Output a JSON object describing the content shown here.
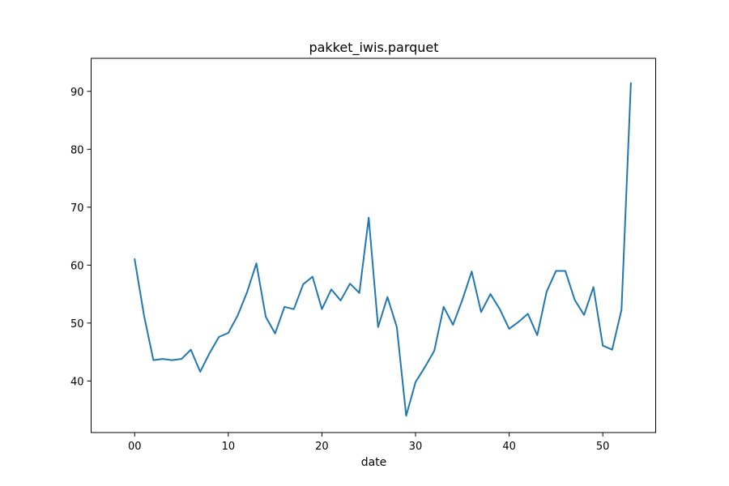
{
  "chart_data": {
    "type": "line",
    "title": "pakket_iwis.parquet",
    "xlabel": "date",
    "ylabel": "",
    "xlim": [
      -4.65,
      55.65
    ],
    "ylim": [
      31.1,
      95.7
    ],
    "xticks": [
      0,
      10,
      20,
      30,
      40,
      50
    ],
    "xtick_labels": [
      "00",
      "10",
      "20",
      "30",
      "40",
      "50"
    ],
    "yticks": [
      40,
      50,
      60,
      70,
      80,
      90
    ],
    "ytick_labels": [
      "40",
      "50",
      "60",
      "70",
      "80",
      "90"
    ],
    "grid": false,
    "legend": "none",
    "series": [
      {
        "color": "#1f77b4",
        "x": [
          0,
          1,
          2,
          3,
          4,
          5,
          6,
          7,
          8,
          9,
          10,
          11,
          12,
          13,
          14,
          15,
          16,
          17,
          18,
          19,
          20,
          21,
          22,
          23,
          24,
          25,
          26,
          27,
          28,
          29,
          30,
          31,
          32,
          33,
          34,
          35,
          36,
          37,
          38,
          39,
          40,
          41,
          42,
          43,
          44,
          45,
          46,
          47,
          48,
          49,
          50,
          51,
          52,
          53
        ],
        "y": [
          61.0,
          51.3,
          43.6,
          43.8,
          43.6,
          43.8,
          45.4,
          41.6,
          44.8,
          47.6,
          48.3,
          51.3,
          55.3,
          60.3,
          51.1,
          48.2,
          52.8,
          52.4,
          56.7,
          58.0,
          52.4,
          55.8,
          53.9,
          56.8,
          55.2,
          68.2,
          49.3,
          54.5,
          49.3,
          34.0,
          39.8,
          42.4,
          45.2,
          52.8,
          49.7,
          54.0,
          58.9,
          51.9,
          55.0,
          52.4,
          49.0,
          50.2,
          51.6,
          47.9,
          55.4,
          59.0,
          59.0,
          54.0,
          51.4,
          56.2,
          46.1,
          45.4,
          52.3,
          91.4
        ]
      }
    ]
  }
}
